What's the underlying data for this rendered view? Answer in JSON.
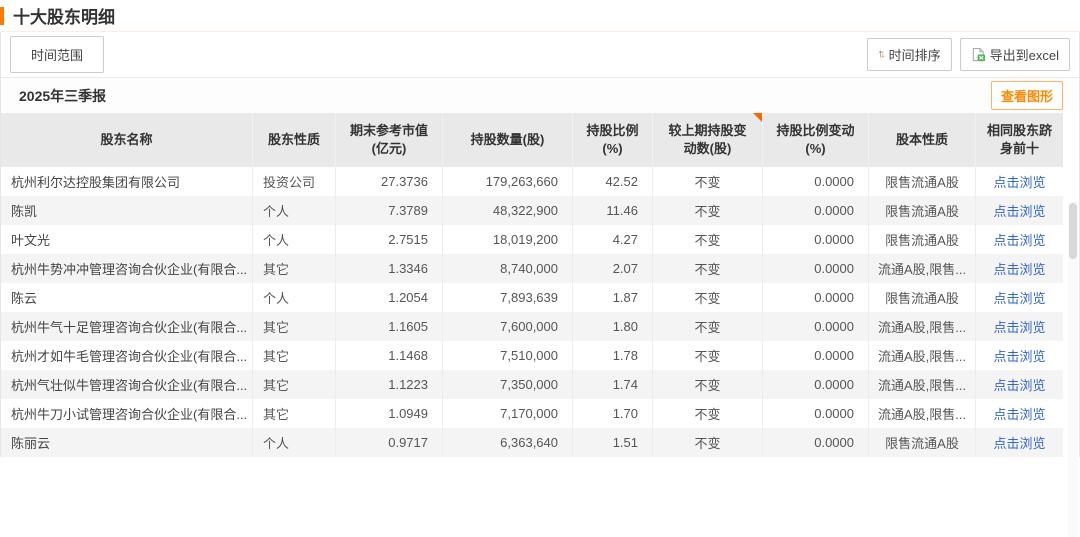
{
  "page_title": "十大股东明细",
  "toolbar": {
    "time_range_label": "时间范围",
    "time_sort_label": "时间排序",
    "export_excel_label": "导出到excel"
  },
  "report": {
    "period_label": "2025年三季报",
    "view_chart_label": "查看图形"
  },
  "table": {
    "columns": [
      {
        "key": "name",
        "label": "股东名称",
        "align": "left"
      },
      {
        "key": "nature",
        "label": "股东性质",
        "align": "left"
      },
      {
        "key": "market_value",
        "label": "期末参考市值\n(亿元)",
        "align": "right"
      },
      {
        "key": "shares",
        "label": "持股数量(股)",
        "align": "right"
      },
      {
        "key": "pct",
        "label": "持股比例\n(%)",
        "align": "right"
      },
      {
        "key": "change",
        "label": "较上期持股变\n动数(股)",
        "align": "center",
        "marker": true
      },
      {
        "key": "pct_change",
        "label": "持股比例变动\n(%)",
        "align": "right"
      },
      {
        "key": "share_type",
        "label": "股本性质",
        "align": "center"
      },
      {
        "key": "same_top10",
        "label": "相同股东跻\n身前十",
        "align": "center",
        "link": true
      }
    ],
    "rows": [
      {
        "name": "杭州利尔达控股集团有限公司",
        "nature": "投资公司",
        "market_value": "27.3736",
        "shares": "179,263,660",
        "pct": "42.52",
        "change": "不变",
        "pct_change": "0.0000",
        "share_type": "限售流通A股",
        "same_top10": "点击浏览"
      },
      {
        "name": "陈凯",
        "nature": "个人",
        "market_value": "7.3789",
        "shares": "48,322,900",
        "pct": "11.46",
        "change": "不变",
        "pct_change": "0.0000",
        "share_type": "限售流通A股",
        "same_top10": "点击浏览"
      },
      {
        "name": "叶文光",
        "nature": "个人",
        "market_value": "2.7515",
        "shares": "18,019,200",
        "pct": "4.27",
        "change": "不变",
        "pct_change": "0.0000",
        "share_type": "限售流通A股",
        "same_top10": "点击浏览"
      },
      {
        "name": "杭州牛势冲冲管理咨询合伙企业(有限合...",
        "nature": "其它",
        "market_value": "1.3346",
        "shares": "8,740,000",
        "pct": "2.07",
        "change": "不变",
        "pct_change": "0.0000",
        "share_type": "流通A股,限售...",
        "same_top10": "点击浏览"
      },
      {
        "name": "陈云",
        "nature": "个人",
        "market_value": "1.2054",
        "shares": "7,893,639",
        "pct": "1.87",
        "change": "不变",
        "pct_change": "0.0000",
        "share_type": "限售流通A股",
        "same_top10": "点击浏览"
      },
      {
        "name": "杭州牛气十足管理咨询合伙企业(有限合...",
        "nature": "其它",
        "market_value": "1.1605",
        "shares": "7,600,000",
        "pct": "1.80",
        "change": "不变",
        "pct_change": "0.0000",
        "share_type": "流通A股,限售...",
        "same_top10": "点击浏览"
      },
      {
        "name": "杭州才如牛毛管理咨询合伙企业(有限合...",
        "nature": "其它",
        "market_value": "1.1468",
        "shares": "7,510,000",
        "pct": "1.78",
        "change": "不变",
        "pct_change": "0.0000",
        "share_type": "流通A股,限售...",
        "same_top10": "点击浏览"
      },
      {
        "name": "杭州气壮似牛管理咨询合伙企业(有限合...",
        "nature": "其它",
        "market_value": "1.1223",
        "shares": "7,350,000",
        "pct": "1.74",
        "change": "不变",
        "pct_change": "0.0000",
        "share_type": "流通A股,限售...",
        "same_top10": "点击浏览"
      },
      {
        "name": "杭州牛刀小试管理咨询合伙企业(有限合...",
        "nature": "其它",
        "market_value": "1.0949",
        "shares": "7,170,000",
        "pct": "1.70",
        "change": "不变",
        "pct_change": "0.0000",
        "share_type": "流通A股,限售...",
        "same_top10": "点击浏览"
      },
      {
        "name": "陈丽云",
        "nature": "个人",
        "market_value": "0.9717",
        "shares": "6,363,640",
        "pct": "1.51",
        "change": "不变",
        "pct_change": "0.0000",
        "share_type": "限售流通A股",
        "same_top10": "点击浏览"
      }
    ]
  },
  "colors": {
    "accent_orange": "#ff7a00",
    "view_chart_orange": "#ff8800",
    "link_blue": "#3366cc",
    "header_bg": "#e9e9e9",
    "alt_row_bg": "#f4f4f4",
    "marker_orange": "#ff6600"
  }
}
